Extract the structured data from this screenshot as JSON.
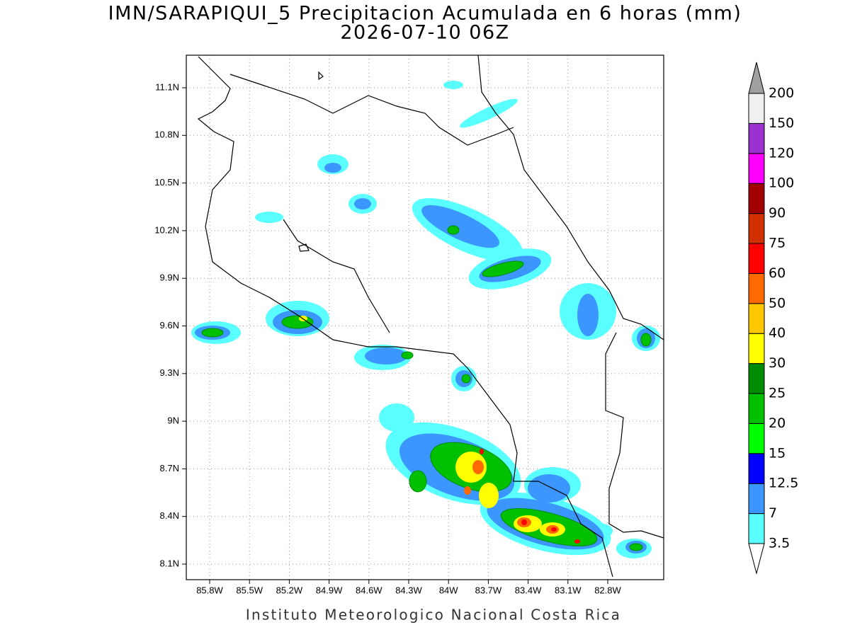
{
  "title": "IMN/SARAPIQUI_5 Precipitacion Acumulada en 6 horas (mm)",
  "subtitle": "2026-07-10 06Z",
  "footer": "Instituto Meteorologico Nacional Costa Rica",
  "map": {
    "lon_ticks": [
      "85.8W",
      "85.5W",
      "85.2W",
      "84.9W",
      "84.6W",
      "84.3W",
      "84W",
      "83.7W",
      "83.4W",
      "83.1W",
      "82.8W"
    ],
    "lat_ticks": [
      "11.1N",
      "10.8N",
      "10.5N",
      "10.2N",
      "9.9N",
      "9.6N",
      "9.3N",
      "9N",
      "8.7N",
      "8.4N",
      "8.1N"
    ],
    "grid": true
  },
  "legend": {
    "levels": [
      "3.5",
      "7",
      "12.5",
      "15",
      "20",
      "25",
      "30",
      "40",
      "50",
      "60",
      "75",
      "90",
      "100",
      "120",
      "150",
      "200"
    ],
    "colors": [
      "#5affff",
      "#3c96ff",
      "#0000ff",
      "#00ff00",
      "#00c000",
      "#008c00",
      "#ffff00",
      "#ffc800",
      "#ff6a00",
      "#ff0000",
      "#d03000",
      "#a00000",
      "#ff00ff",
      "#9b30d0",
      "#f0f0f0"
    ],
    "over_color": "#a0a0a0",
    "under_color": "#ffffff"
  }
}
